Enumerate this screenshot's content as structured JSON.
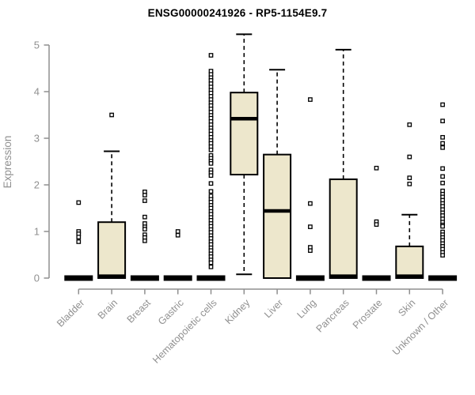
{
  "chart_data": {
    "type": "boxplot",
    "title": "ENSG00000241926 - RP5-1154E9.7",
    "ylabel": "Expression",
    "xlabel": "",
    "ylim": [
      0,
      5.3
    ],
    "yticks": [
      0,
      1,
      2,
      3,
      4,
      5
    ],
    "grid": false,
    "legend": "none",
    "colors": {
      "box_fill": "#ede7cc",
      "box_stroke": "#000000",
      "axis": "#8f8f8f",
      "tick_label": "#909090",
      "title": "#000000"
    },
    "categories": [
      "Bladder",
      "Brain",
      "Breast",
      "Gastric",
      "Hematopoietic cells",
      "Kidney",
      "Liver",
      "Lung",
      "Pancreas",
      "Prostate",
      "Skin",
      "Unknown / Other"
    ],
    "series": [
      {
        "name": "Bladder",
        "q1": 0,
        "median": 0,
        "q3": 0,
        "whisker_low": 0,
        "whisker_high": 0,
        "outliers": [
          1.62,
          1.0,
          0.95,
          0.88,
          0.78
        ]
      },
      {
        "name": "Brain",
        "q1": 0,
        "median": 0.04,
        "q3": 1.2,
        "whisker_low": 0,
        "whisker_high": 2.72,
        "outliers": [
          3.5
        ]
      },
      {
        "name": "Breast",
        "q1": 0,
        "median": 0,
        "q3": 0,
        "whisker_low": 0,
        "whisker_high": 0,
        "outliers": [
          1.85,
          1.78,
          1.66,
          1.31,
          1.17,
          1.1,
          1.05,
          0.93,
          0.87,
          0.8
        ]
      },
      {
        "name": "Gastric",
        "q1": 0,
        "median": 0,
        "q3": 0,
        "whisker_low": 0,
        "whisker_high": 0,
        "outliers": [
          1.0,
          0.92
        ]
      },
      {
        "name": "Hematopoietic cells",
        "q1": 0,
        "median": 0,
        "q3": 0,
        "whisker_low": 0,
        "whisker_high": 0,
        "outliers": [
          4.78,
          4.44,
          4.37,
          4.3,
          4.24,
          4.17,
          4.1,
          4.03,
          3.97,
          3.9,
          3.83,
          3.76,
          3.7,
          3.63,
          3.56,
          3.49,
          3.43,
          3.36,
          3.29,
          3.22,
          3.16,
          3.09,
          3.02,
          2.95,
          2.89,
          2.82,
          2.75,
          2.63,
          2.57,
          2.51,
          2.46,
          2.32,
          2.26,
          2.2,
          2.03,
          1.86,
          1.76,
          1.69,
          1.63,
          1.56,
          1.5,
          1.43,
          1.37,
          1.3,
          1.24,
          1.17,
          1.11,
          1.04,
          0.98,
          0.91,
          0.85,
          0.78,
          0.72,
          0.65,
          0.59,
          0.52,
          0.46,
          0.39,
          0.33,
          0.24
        ]
      },
      {
        "name": "Kidney",
        "q1": 2.22,
        "median": 3.42,
        "q3": 3.98,
        "whisker_low": 0.08,
        "whisker_high": 5.23,
        "outliers": []
      },
      {
        "name": "Liver",
        "q1": 0,
        "median": 1.44,
        "q3": 2.65,
        "whisker_low": 0,
        "whisker_high": 4.47,
        "outliers": []
      },
      {
        "name": "Lung",
        "q1": 0,
        "median": 0,
        "q3": 0,
        "whisker_low": 0,
        "whisker_high": 0,
        "outliers": [
          3.83,
          1.6,
          1.1,
          0.66,
          0.59
        ]
      },
      {
        "name": "Pancreas",
        "q1": 0,
        "median": 0.04,
        "q3": 2.12,
        "whisker_low": 0,
        "whisker_high": 4.9,
        "outliers": []
      },
      {
        "name": "Prostate",
        "q1": 0,
        "median": 0,
        "q3": 0,
        "whisker_low": 0,
        "whisker_high": 0,
        "outliers": [
          2.36,
          1.21,
          1.15
        ]
      },
      {
        "name": "Skin",
        "q1": 0,
        "median": 0.04,
        "q3": 0.68,
        "whisker_low": 0,
        "whisker_high": 1.36,
        "outliers": [
          3.29,
          2.6,
          2.15,
          2.02
        ]
      },
      {
        "name": "Unknown / Other",
        "q1": 0,
        "median": 0,
        "q3": 0,
        "whisker_low": 0,
        "whisker_high": 0,
        "outliers": [
          3.72,
          3.37,
          3.02,
          2.89,
          2.8,
          2.35,
          2.18,
          2.04,
          1.87,
          1.8,
          1.74,
          1.67,
          1.6,
          1.54,
          1.47,
          1.4,
          1.34,
          1.27,
          1.2,
          1.14,
          1.11,
          0.99,
          0.93,
          0.87,
          0.81,
          0.74,
          0.68,
          0.62,
          0.55,
          0.49
        ]
      }
    ]
  }
}
